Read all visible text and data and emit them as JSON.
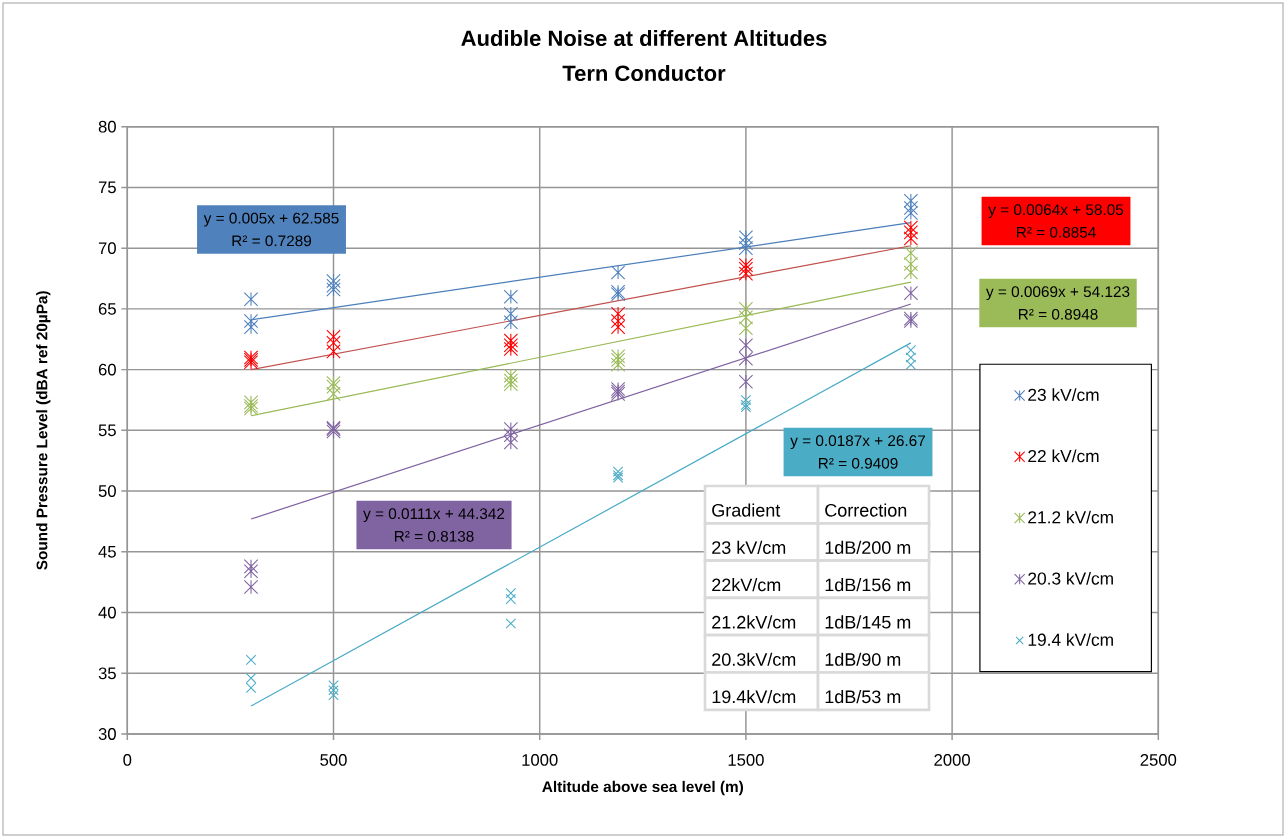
{
  "chart_data": {
    "type": "scatter",
    "title": "Audible Noise at different Altitudes",
    "subtitle": "Tern Conductor",
    "xlabel": "Altitude above sea level (m)",
    "ylabel": "Sound Pressure Level (dBA ref 20µPa)",
    "xlim": [
      0,
      2500
    ],
    "xticks": [
      0,
      500,
      1000,
      1500,
      2000,
      2500
    ],
    "ylim": [
      30,
      80
    ],
    "yticks": [
      30,
      35,
      40,
      45,
      50,
      55,
      60,
      65,
      70,
      75,
      80
    ],
    "grid": true,
    "legend": "right",
    "series": [
      {
        "name": "23 kV/cm",
        "color": "#4f81bd",
        "x": [
          300,
          300,
          300,
          500,
          500,
          500,
          930,
          930,
          930,
          1190,
          1190,
          1190,
          1500,
          1500,
          1500,
          1900,
          1900,
          1900
        ],
        "values": [
          65.8,
          64.0,
          63.5,
          67.3,
          66.9,
          66.6,
          66.0,
          64.6,
          63.9,
          68.0,
          66.4,
          66.2,
          70.9,
          70.4,
          70.0,
          73.9,
          73.3,
          72.9
        ]
      },
      {
        "name": "22 kV/cm",
        "color": "#ff0000",
        "x": [
          300,
          300,
          300,
          500,
          500,
          500,
          930,
          930,
          930,
          1190,
          1190,
          1190,
          1500,
          1500,
          1500,
          1900,
          1900,
          1900
        ],
        "values": [
          61.0,
          60.8,
          60.6,
          62.7,
          62.2,
          61.5,
          62.4,
          62.0,
          61.7,
          64.6,
          64.0,
          63.5,
          68.6,
          68.3,
          67.9,
          71.7,
          71.3,
          70.8
        ]
      },
      {
        "name": "21.2 kV/cm",
        "color": "#9bbb59",
        "x": [
          300,
          300,
          300,
          500,
          500,
          500,
          930,
          930,
          930,
          1190,
          1190,
          1190,
          1500,
          1500,
          1500,
          1900,
          1900,
          1900
        ],
        "values": [
          57.3,
          57.0,
          56.8,
          58.9,
          58.6,
          58.0,
          59.5,
          59.1,
          58.8,
          61.1,
          60.8,
          60.4,
          65.0,
          64.3,
          63.4,
          69.6,
          68.7,
          68.0
        ]
      },
      {
        "name": "20.3 kV/cm",
        "color": "#8064a2",
        "x": [
          300,
          300,
          300,
          500,
          500,
          500,
          930,
          930,
          930,
          1190,
          1190,
          1190,
          1500,
          1500,
          1500,
          1900,
          1900,
          1900
        ],
        "values": [
          43.8,
          43.4,
          42.1,
          55.2,
          55.1,
          54.9,
          55.1,
          54.6,
          54.0,
          58.4,
          58.2,
          58.0,
          62.0,
          60.9,
          59.0,
          66.3,
          64.2,
          64.0
        ]
      },
      {
        "name": "19.4 kV/cm",
        "marker": "cross",
        "color": "#4bacc6",
        "x": [
          300,
          300,
          300,
          500,
          500,
          500,
          930,
          930,
          930,
          1190,
          1190,
          1190,
          1500,
          1500,
          1500,
          1900,
          1900,
          1900
        ],
        "values": [
          36.1,
          34.6,
          33.8,
          34.0,
          33.6,
          33.2,
          41.6,
          41.1,
          39.1,
          51.6,
          51.3,
          51.1,
          57.5,
          57.1,
          56.9,
          61.6,
          61.0,
          60.4
        ]
      },
      {
        "type": "line",
        "color": "#4a7ebb",
        "x": [
          300,
          1900
        ],
        "values": [
          64.1,
          72.1
        ]
      },
      {
        "type": "line",
        "color": "#c0504d",
        "x": [
          300,
          1900
        ],
        "values": [
          60.0,
          70.2
        ]
      },
      {
        "type": "line",
        "color": "#98b954",
        "x": [
          300,
          1900
        ],
        "values": [
          56.2,
          67.2
        ]
      },
      {
        "type": "line",
        "color": "#7d60a0",
        "x": [
          300,
          1900
        ],
        "values": [
          47.7,
          65.4
        ]
      },
      {
        "type": "line",
        "color": "#46aac5",
        "x": [
          300,
          1900
        ],
        "values": [
          32.3,
          62.2
        ]
      }
    ],
    "annotations": [
      "y = 0.005x + 62.585",
      "R² = 0.7289",
      "y = 0.0064x + 58.05",
      "R² = 0.8854",
      "y = 0.0069x + 54.123",
      "R² = 0.8948",
      "y = 0.0111x + 44.342",
      "R² = 0.8138",
      "y = 0.0187x + 26.67",
      "R² = 0.9409",
      "Gradient",
      "Correction",
      "23 kV/cm",
      "1dB/200 m",
      "22kV/cm",
      "1dB/156 m",
      "21.2kV/cm",
      "1dB/145 m",
      "20.3kV/cm",
      "1dB/90 m",
      "19.4kV/cm",
      "1dB/53 m"
    ]
  }
}
